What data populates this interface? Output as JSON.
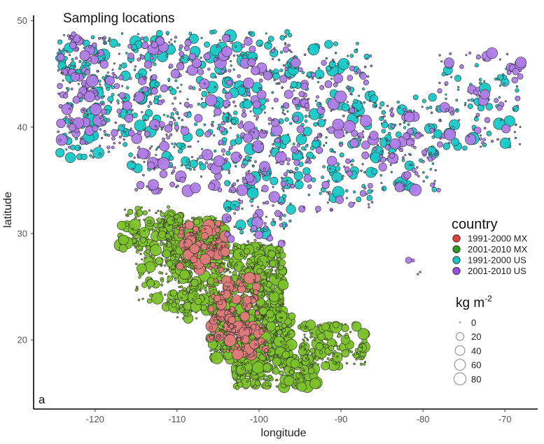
{
  "chart_data": {
    "type": "scatter",
    "title": "Sampling locations",
    "panel_label": "a",
    "xlabel": "longitude",
    "ylabel": "latitude",
    "xlim": [
      -127.5,
      -66
    ],
    "ylim": [
      13.5,
      50.5
    ],
    "x_ticks": [
      -120,
      -110,
      -100,
      -90,
      -80,
      -70
    ],
    "y_ticks": [
      20,
      30,
      40,
      50
    ],
    "grid": false,
    "legend": {
      "title": "country",
      "placement": "right",
      "entries": [
        {
          "label": "1991-2000 MX",
          "color": "#e0413a"
        },
        {
          "label": "2001-2010 MX",
          "color": "#2e9a1f"
        },
        {
          "label": "1991-2000 US",
          "color": "#18c8c8"
        },
        {
          "label": "2001-2010 US",
          "color": "#9b4fe0"
        }
      ]
    },
    "size_legend": {
      "title_main": "kg m",
      "title_sup": "-2",
      "values": [
        0,
        20,
        40,
        60,
        80
      ]
    },
    "series": [
      {
        "name": "2001-2010 MX",
        "color": "#7cc22a",
        "regions": [
          {
            "lon": [
              -117,
              -109.5
            ],
            "lat": [
              28.5,
              32.5
            ],
            "n": 140
          },
          {
            "lon": [
              -115,
              -110
            ],
            "lat": [
              23,
              28.5
            ],
            "n": 80
          },
          {
            "lon": [
              -112,
              -104
            ],
            "lat": [
              27,
              31.5
            ],
            "n": 260
          },
          {
            "lon": [
              -110,
              -97
            ],
            "lat": [
              22,
              29
            ],
            "n": 620
          },
          {
            "lon": [
              -106,
              -96
            ],
            "lat": [
              18,
              22.5
            ],
            "n": 420
          },
          {
            "lon": [
              -103,
              -93
            ],
            "lat": [
              15.5,
              19
            ],
            "n": 260
          },
          {
            "lon": [
              -95,
              -87
            ],
            "lat": [
              17.5,
              21.5
            ],
            "n": 150
          },
          {
            "lon": [
              -100.5,
              -97
            ],
            "lat": [
              22,
              27.5
            ],
            "n": 120
          }
        ]
      },
      {
        "name": "1991-2000 MX",
        "color": "#e07a7a",
        "regions": [
          {
            "lon": [
              -110,
              -104
            ],
            "lat": [
              26.5,
              31
            ],
            "n": 110
          },
          {
            "lon": [
              -106,
              -100
            ],
            "lat": [
              20,
              26
            ],
            "n": 160
          },
          {
            "lon": [
              -104,
              -99
            ],
            "lat": [
              18.5,
              21.5
            ],
            "n": 70
          }
        ]
      },
      {
        "name": "1991-2000 US",
        "color": "#18c8c8",
        "regions": [
          {
            "lon": [
              -124.5,
              -117
            ],
            "lat": [
              37,
              48.5
            ],
            "n": 140
          },
          {
            "lon": [
              -117,
              -104
            ],
            "lat": [
              36,
              49
            ],
            "n": 210
          },
          {
            "lon": [
              -104,
              -96
            ],
            "lat": [
              30,
              49
            ],
            "n": 200
          },
          {
            "lon": [
              -96,
              -86
            ],
            "lat": [
              33,
              48
            ],
            "n": 160
          },
          {
            "lon": [
              -86,
              -78
            ],
            "lat": [
              34,
              43
            ],
            "n": 90
          },
          {
            "lon": [
              -78,
              -68
            ],
            "lat": [
              38,
              46
            ],
            "n": 70
          }
        ]
      },
      {
        "name": "2001-2010 US",
        "color": "#b07ce8",
        "regions": [
          {
            "lon": [
              -124.5,
              -117
            ],
            "lat": [
              38,
              48.8
            ],
            "n": 150
          },
          {
            "lon": [
              -117,
              -104
            ],
            "lat": [
              34,
              48.5
            ],
            "n": 200
          },
          {
            "lon": [
              -104,
              -96
            ],
            "lat": [
              29,
              48.5
            ],
            "n": 190
          },
          {
            "lon": [
              -96,
              -86
            ],
            "lat": [
              32,
              47
            ],
            "n": 140
          },
          {
            "lon": [
              -86,
              -78
            ],
            "lat": [
              34,
              42
            ],
            "n": 90
          },
          {
            "lon": [
              -78,
              -68
            ],
            "lat": [
              38,
              47
            ],
            "n": 80
          },
          {
            "lon": [
              -82,
              -80
            ],
            "lat": [
              24.5,
              27.5
            ],
            "n": 4
          }
        ]
      }
    ]
  }
}
